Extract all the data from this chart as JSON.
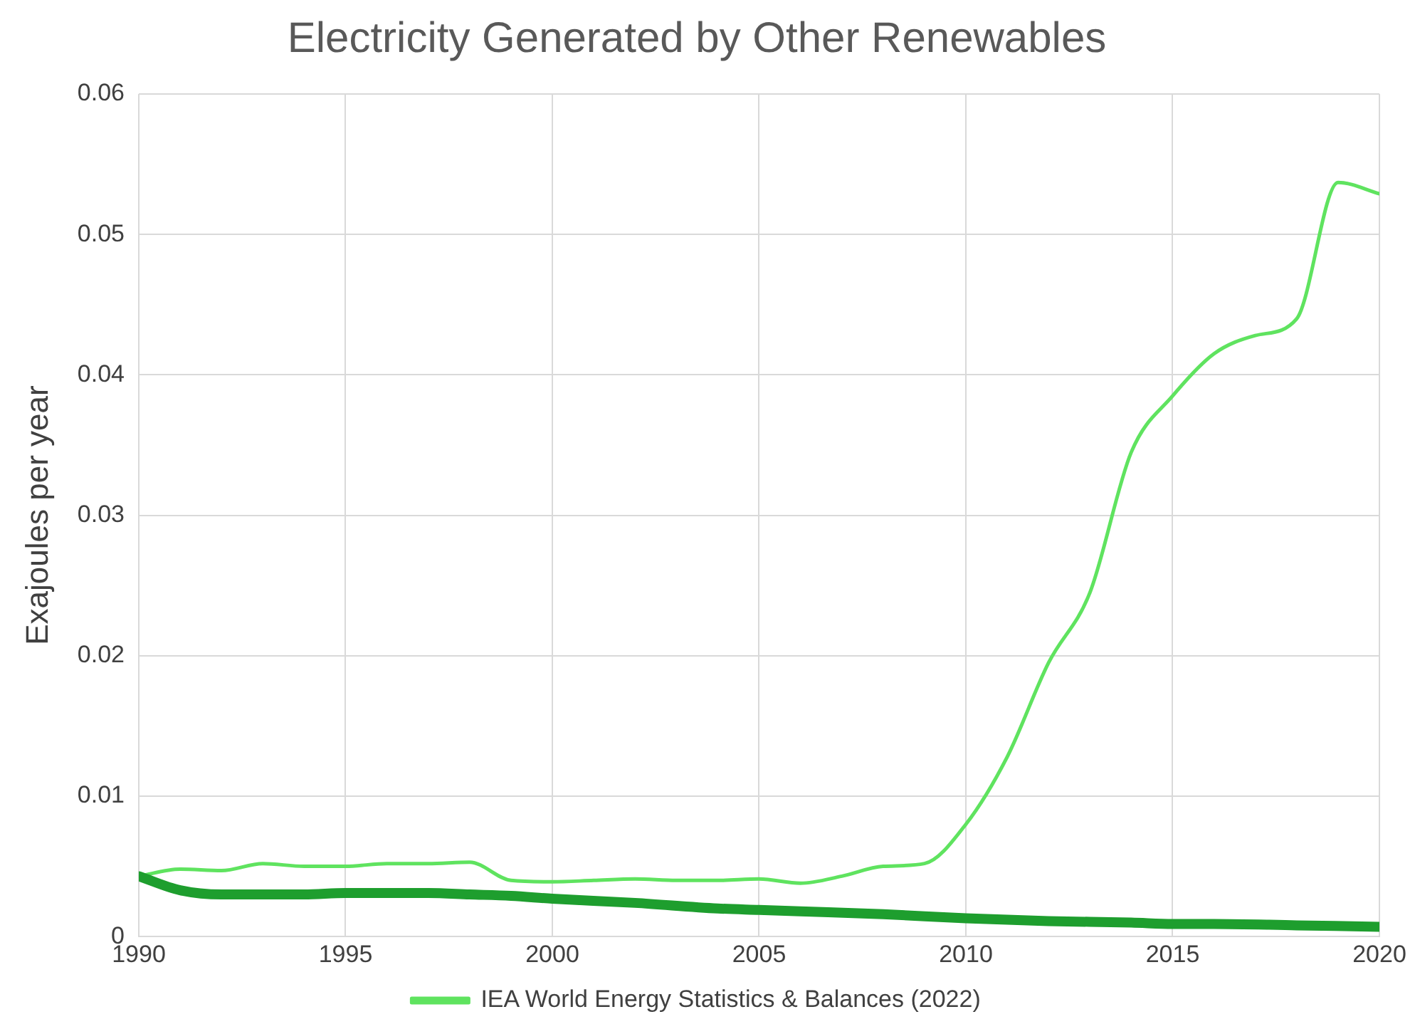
{
  "chart_data": {
    "type": "line",
    "title": "Electricity Generated by Other Renewables",
    "ylabel": "Exajoules per year",
    "xlim": [
      1990,
      2020
    ],
    "xticks": [
      1990,
      1995,
      2000,
      2005,
      2010,
      2015,
      2020
    ],
    "ylim": [
      0,
      0.06
    ],
    "yticks": [
      0,
      0.01,
      0.02,
      0.03,
      0.04,
      0.05,
      0.06
    ],
    "grid": true,
    "legend": "bottom",
    "marker": "none",
    "line_style": "solid",
    "series": [
      {
        "color": "#1e9e2e",
        "x": [
          1990,
          1991,
          1992,
          1993,
          1994,
          1995,
          1996,
          1997,
          1998,
          1999,
          2000,
          2002,
          2004,
          2005,
          2006,
          2008,
          2010,
          2012,
          2014,
          2015,
          2016,
          2018,
          2020
        ],
        "values": [
          0.0043,
          0.0033,
          0.003,
          0.003,
          0.003,
          0.0031,
          0.0031,
          0.0031,
          0.003,
          0.0029,
          0.0027,
          0.0024,
          0.002,
          0.0019,
          0.0018,
          0.0016,
          0.0013,
          0.0011,
          0.001,
          0.0009,
          0.0009,
          0.0008,
          0.0007
        ]
      },
      {
        "name": "IEA World Energy Statistics & Balances (2022)",
        "color": "#5fe35f",
        "x": [
          1990,
          1991,
          1992,
          1993,
          1994,
          1995,
          1996,
          1997,
          1998,
          1999,
          2000,
          2001,
          2002,
          2003,
          2004,
          2005,
          2006,
          2007,
          2008,
          2009,
          2010,
          2011,
          2012,
          2013,
          2014,
          2015,
          2016,
          2017,
          2018,
          2019,
          2020
        ],
        "values": [
          0.0043,
          0.0048,
          0.0047,
          0.0052,
          0.005,
          0.005,
          0.0052,
          0.0052,
          0.0053,
          0.004,
          0.0039,
          0.004,
          0.0041,
          0.004,
          0.004,
          0.0041,
          0.0038,
          0.0043,
          0.005,
          0.0052,
          0.008,
          0.0128,
          0.0195,
          0.0245,
          0.0345,
          0.0385,
          0.0415,
          0.0428,
          0.044,
          0.0537,
          0.0529
        ]
      }
    ]
  }
}
